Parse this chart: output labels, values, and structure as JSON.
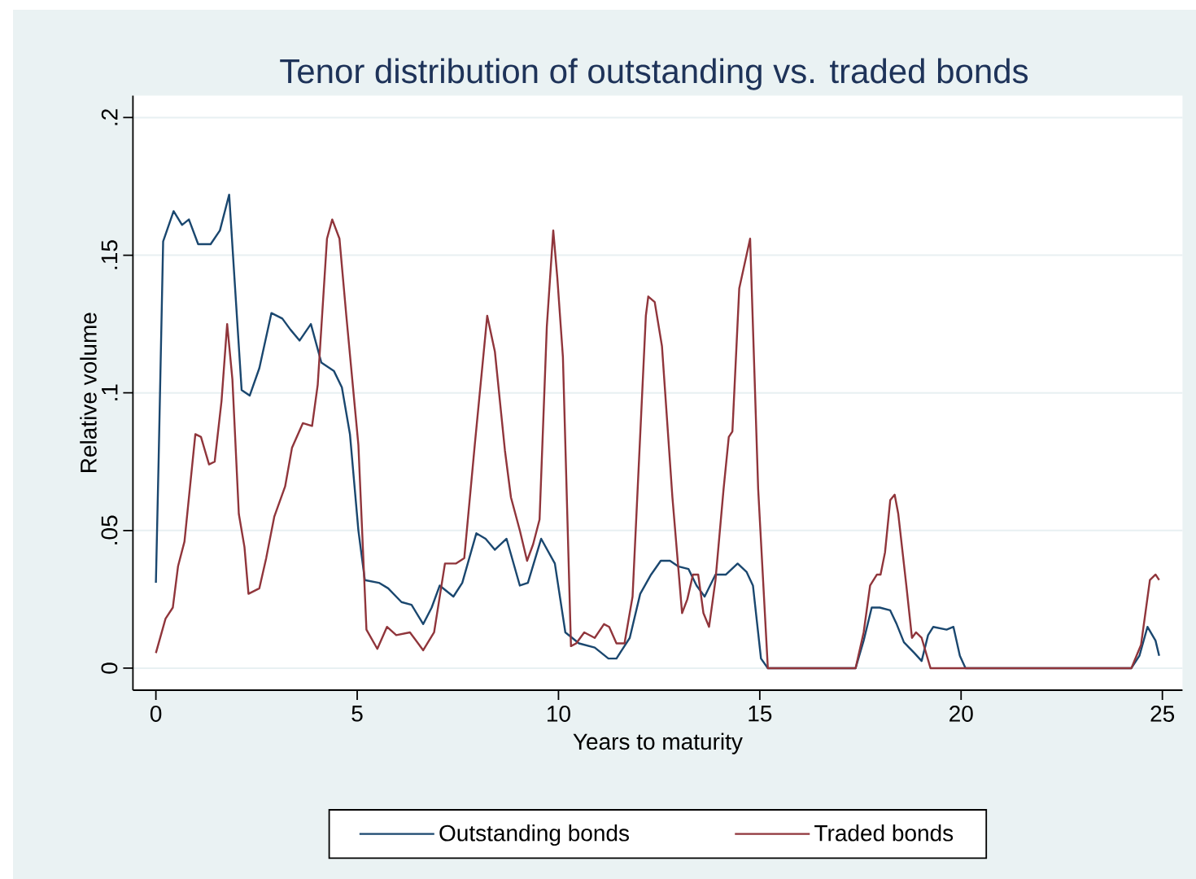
{
  "chart_data": {
    "type": "line",
    "title": "Tenor distribution of outstanding vs. traded bonds",
    "xlabel": "Years to maturity",
    "ylabel": "Relative volume",
    "xlim": [
      -0.57,
      25.5
    ],
    "ylim": [
      -0.008,
      0.208
    ],
    "xticks": [
      0,
      5,
      10,
      15,
      20,
      25
    ],
    "yticks": [
      {
        "value": 0,
        "label": "0"
      },
      {
        "value": 0.05,
        "label": ".05"
      },
      {
        "value": 0.1,
        "label": ".1"
      },
      {
        "value": 0.15,
        "label": ".15"
      },
      {
        "value": 0.2,
        "label": ".2"
      }
    ],
    "grid": "y",
    "legend": "bottom",
    "line_style": "solid",
    "series": [
      {
        "name": "Outstanding bonds",
        "color": "#1a476f",
        "x": [
          0,
          0.07,
          0.18,
          0.44,
          0.65,
          0.82,
          1.05,
          1.36,
          1.59,
          1.82,
          1.95,
          2.13,
          2.33,
          2.57,
          2.87,
          3.14,
          3.34,
          3.57,
          3.85,
          4.11,
          4.42,
          4.62,
          4.82,
          5.03,
          5.19,
          5.54,
          5.77,
          6.1,
          6.35,
          6.64,
          6.85,
          7.05,
          7.39,
          7.61,
          7.96,
          8.19,
          8.42,
          8.71,
          9.04,
          9.24,
          9.57,
          9.91,
          10.17,
          10.51,
          10.9,
          11.24,
          11.44,
          11.77,
          12.03,
          12.3,
          12.54,
          12.77,
          12.97,
          13.23,
          13.43,
          13.63,
          13.9,
          14.16,
          14.45,
          14.67,
          14.83,
          15.03,
          15.2,
          17.38,
          17.58,
          17.78,
          17.98,
          18.24,
          18.4,
          18.58,
          18.84,
          19.02,
          19.18,
          19.31,
          19.64,
          19.81,
          19.97,
          20.11,
          24.23,
          24.43,
          24.63,
          24.83,
          24.92
        ],
        "values": [
          0.031,
          0.077,
          0.155,
          0.166,
          0.161,
          0.163,
          0.154,
          0.154,
          0.159,
          0.172,
          0.142,
          0.101,
          0.099,
          0.109,
          0.129,
          0.127,
          0.123,
          0.119,
          0.125,
          0.111,
          0.108,
          0.102,
          0.085,
          0.05,
          0.032,
          0.031,
          0.029,
          0.024,
          0.023,
          0.016,
          0.022,
          0.03,
          0.026,
          0.031,
          0.049,
          0.047,
          0.043,
          0.047,
          0.03,
          0.031,
          0.047,
          0.038,
          0.013,
          0.009,
          0.0075,
          0.0035,
          0.0035,
          0.011,
          0.027,
          0.034,
          0.039,
          0.039,
          0.037,
          0.036,
          0.03,
          0.026,
          0.034,
          0.034,
          0.038,
          0.035,
          0.03,
          0.0035,
          0,
          0,
          0.01,
          0.022,
          0.022,
          0.021,
          0.016,
          0.0094,
          0.0055,
          0.0026,
          0.012,
          0.015,
          0.014,
          0.015,
          0.0045,
          0,
          0,
          0.0045,
          0.015,
          0.01,
          0.0045
        ]
      },
      {
        "name": "Traded bonds",
        "color": "#90353b",
        "x": [
          0,
          0.24,
          0.42,
          0.55,
          0.71,
          0.98,
          1.12,
          1.32,
          1.46,
          1.63,
          1.77,
          1.9,
          2.06,
          2.2,
          2.3,
          2.57,
          2.74,
          2.94,
          3.21,
          3.38,
          3.65,
          3.88,
          4.02,
          4.25,
          4.38,
          4.56,
          4.73,
          5.03,
          5.23,
          5.5,
          5.74,
          5.97,
          6.31,
          6.64,
          6.91,
          7.18,
          7.45,
          7.66,
          7.92,
          8.23,
          8.42,
          8.67,
          8.82,
          9.04,
          9.22,
          9.37,
          9.53,
          9.71,
          9.87,
          9.97,
          10.11,
          10.31,
          10.44,
          10.64,
          10.9,
          11.13,
          11.26,
          11.44,
          11.64,
          11.84,
          12.17,
          12.23,
          12.39,
          12.57,
          12.83,
          13.07,
          13.2,
          13.34,
          13.47,
          13.6,
          13.74,
          13.9,
          14.1,
          14.23,
          14.32,
          14.49,
          14.76,
          14.96,
          15.2,
          17.38,
          17.58,
          17.74,
          17.91,
          18.0,
          18.11,
          18.24,
          18.35,
          18.44,
          18.64,
          18.78,
          18.88,
          19.02,
          19.24,
          24.23,
          24.47,
          24.69,
          24.83,
          24.92
        ],
        "values": [
          0.0055,
          0.018,
          0.022,
          0.037,
          0.046,
          0.085,
          0.084,
          0.074,
          0.075,
          0.097,
          0.125,
          0.105,
          0.056,
          0.044,
          0.027,
          0.029,
          0.04,
          0.055,
          0.066,
          0.08,
          0.089,
          0.088,
          0.103,
          0.156,
          0.163,
          0.156,
          0.128,
          0.081,
          0.014,
          0.007,
          0.015,
          0.012,
          0.013,
          0.0065,
          0.013,
          0.038,
          0.038,
          0.04,
          0.081,
          0.128,
          0.115,
          0.079,
          0.062,
          0.05,
          0.039,
          0.045,
          0.054,
          0.124,
          0.159,
          0.142,
          0.113,
          0.008,
          0.009,
          0.013,
          0.011,
          0.016,
          0.015,
          0.009,
          0.009,
          0.026,
          0.128,
          0.135,
          0.133,
          0.117,
          0.062,
          0.02,
          0.025,
          0.034,
          0.034,
          0.02,
          0.015,
          0.032,
          0.065,
          0.084,
          0.086,
          0.138,
          0.156,
          0.065,
          0,
          0,
          0.013,
          0.03,
          0.034,
          0.034,
          0.042,
          0.061,
          0.063,
          0.056,
          0.03,
          0.011,
          0.013,
          0.011,
          0,
          0,
          0.0085,
          0.032,
          0.034,
          0.032
        ]
      }
    ]
  }
}
